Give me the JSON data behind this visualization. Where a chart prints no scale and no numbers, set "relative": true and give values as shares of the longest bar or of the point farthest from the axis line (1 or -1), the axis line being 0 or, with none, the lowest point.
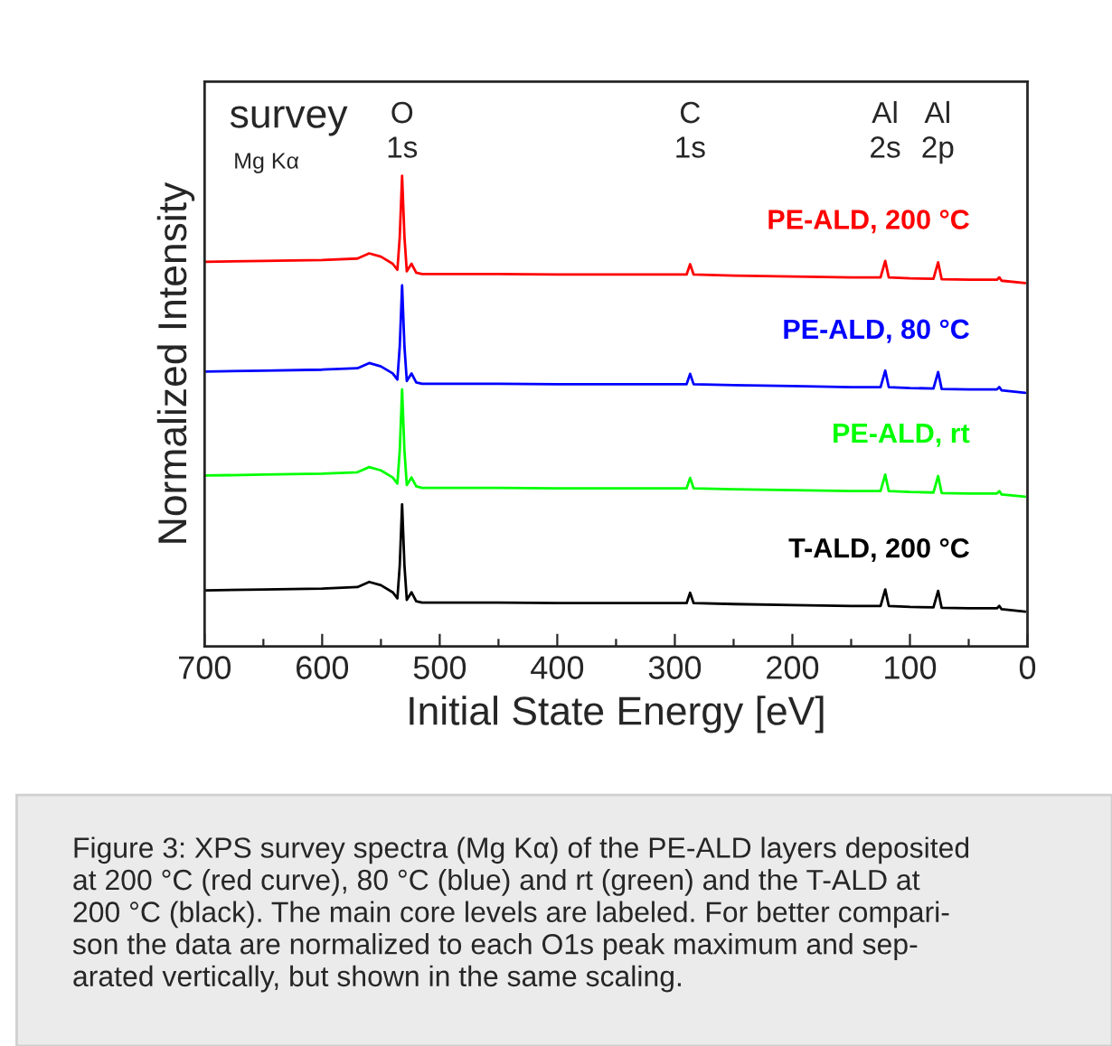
{
  "chart_data": {
    "type": "line",
    "relative": true,
    "xlabel": "Initial State Energy [eV]",
    "ylabel": "Normalized Intensity",
    "x": [
      700,
      650,
      600,
      570,
      560,
      550,
      540,
      536,
      534,
      532,
      530,
      528,
      524,
      520,
      515,
      450,
      400,
      300,
      290,
      287,
      284,
      250,
      200,
      150,
      125,
      121,
      118,
      100,
      80,
      76,
      73,
      50,
      26,
      24,
      22,
      2
    ],
    "xlim": [
      700,
      0
    ],
    "xticks": [
      700,
      {
        "value": 650,
        "label": null
      },
      600,
      {
        "value": 550,
        "label": null
      },
      500,
      {
        "value": 450,
        "label": null
      },
      400,
      {
        "value": 350,
        "label": null
      },
      300,
      {
        "value": 250,
        "label": null
      },
      200,
      {
        "value": 150,
        "label": null
      },
      100,
      {
        "value": 50,
        "label": null
      },
      0
    ],
    "series": [
      {
        "name": "PE-ALD, 200 °C",
        "color": "#ff0000",
        "values": [
          0.817,
          0.819,
          0.821,
          0.824,
          0.835,
          0.828,
          0.813,
          0.8,
          0.87,
          1.0,
          0.87,
          0.797,
          0.813,
          0.794,
          0.791,
          0.791,
          0.79,
          0.79,
          0.79,
          0.812,
          0.79,
          0.788,
          0.786,
          0.784,
          0.784,
          0.819,
          0.784,
          0.782,
          0.781,
          0.816,
          0.78,
          0.779,
          0.779,
          0.784,
          0.777,
          0.772
        ]
      },
      {
        "name": "PE-ALD, 80 °C",
        "color": "#0000ff",
        "values": [
          0.584,
          0.586,
          0.588,
          0.591,
          0.602,
          0.595,
          0.58,
          0.567,
          0.637,
          0.767,
          0.637,
          0.564,
          0.58,
          0.561,
          0.558,
          0.558,
          0.557,
          0.557,
          0.557,
          0.579,
          0.557,
          0.555,
          0.553,
          0.551,
          0.551,
          0.586,
          0.551,
          0.549,
          0.548,
          0.583,
          0.547,
          0.546,
          0.546,
          0.551,
          0.544,
          0.539
        ]
      },
      {
        "name": "PE-ALD, rt",
        "color": "#00ff00",
        "values": [
          0.363,
          0.365,
          0.367,
          0.37,
          0.381,
          0.374,
          0.359,
          0.346,
          0.416,
          0.546,
          0.416,
          0.343,
          0.359,
          0.34,
          0.337,
          0.337,
          0.336,
          0.336,
          0.336,
          0.358,
          0.336,
          0.334,
          0.332,
          0.33,
          0.33,
          0.365,
          0.33,
          0.328,
          0.327,
          0.362,
          0.326,
          0.325,
          0.325,
          0.33,
          0.323,
          0.318
        ]
      },
      {
        "name": "T-ALD, 200 °C",
        "color": "#000000",
        "values": [
          0.119,
          0.121,
          0.123,
          0.126,
          0.137,
          0.13,
          0.115,
          0.102,
          0.172,
          0.302,
          0.172,
          0.099,
          0.115,
          0.096,
          0.093,
          0.093,
          0.092,
          0.092,
          0.092,
          0.114,
          0.092,
          0.09,
          0.088,
          0.086,
          0.086,
          0.121,
          0.086,
          0.084,
          0.083,
          0.118,
          0.082,
          0.081,
          0.081,
          0.086,
          0.079,
          0.074
        ]
      }
    ],
    "annotations": [
      "survey",
      "Mg Kα",
      "O\n1s",
      "C\n1s",
      "Al\n2s",
      "Al\n2p",
      "Figure 3: XPS survey spectra (Mg Kα) of the PE-ALD layers deposited\nat 200 °C (red curve), 80 °C (blue) and rt (green) and the T-ALD at\n200 °C (black). The main core levels are labeled. For better compari-\nson the data are normalized to each O1s peak maximum and sep-\narated vertically, but shown in the same scaling."
    ],
    "grid": false,
    "legend": false
  }
}
